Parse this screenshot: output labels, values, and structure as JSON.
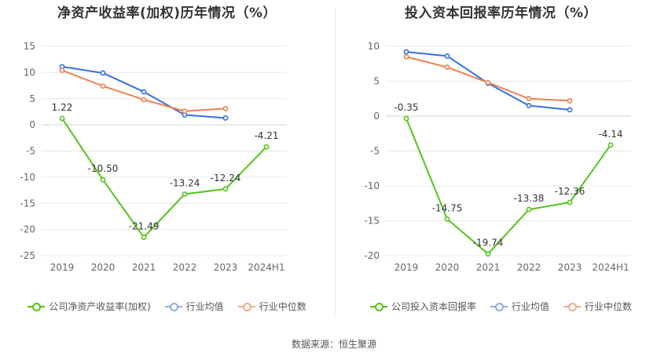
{
  "charts": [
    {
      "id": "left",
      "title": "净资产收益率(加权)历年情况（%）",
      "legend": [
        {
          "label": "公司净资产收益率(加权)",
          "color": "#52c41a"
        },
        {
          "label": "行业均值",
          "color": "#8fabf0"
        },
        {
          "label": "行业中位数",
          "color": "#f5a98b"
        }
      ]
    },
    {
      "id": "right",
      "title": "投入资本回报率历年情况（%）",
      "legend": [
        {
          "label": "公司投入资本回报率",
          "color": "#52c41a"
        },
        {
          "label": "行业均值",
          "color": "#8fabf0"
        },
        {
          "label": "行业中位数",
          "color": "#f5a98b"
        }
      ]
    }
  ],
  "source": "数据来源：恒生聚源",
  "chart_data": [
    {
      "type": "line",
      "title": "净资产收益率(加权)历年情况（%）",
      "categories": [
        "2019",
        "2020",
        "2021",
        "2022",
        "2023",
        "2024H1"
      ],
      "ylim": [
        -25,
        15
      ],
      "yticks": [
        15,
        10,
        5,
        0,
        -5,
        -10,
        -15,
        -20,
        -25
      ],
      "series": [
        {
          "name": "公司净资产收益率(加权)",
          "color": "#52c41a",
          "values": [
            1.22,
            -10.5,
            -21.49,
            -13.24,
            -12.24,
            -4.21
          ],
          "labels": [
            "1.22",
            "-10.50",
            "-21.49",
            "-13.24",
            "-12.24",
            "-4.21"
          ]
        },
        {
          "name": "行业均值",
          "color": "#3570e0",
          "values": [
            11.1,
            9.9,
            6.3,
            1.9,
            1.3,
            null
          ]
        },
        {
          "name": "行业中位数",
          "color": "#f07f4f",
          "values": [
            10.4,
            7.4,
            4.8,
            2.6,
            3.1,
            null
          ]
        }
      ]
    },
    {
      "type": "line",
      "title": "投入资本回报率历年情况（%）",
      "categories": [
        "2019",
        "2020",
        "2021",
        "2022",
        "2023",
        "2024H1"
      ],
      "ylim": [
        -20,
        10
      ],
      "yticks": [
        10,
        5,
        0,
        -5,
        -10,
        -15,
        -20
      ],
      "series": [
        {
          "name": "公司投入资本回报率",
          "color": "#52c41a",
          "values": [
            -0.35,
            -14.75,
            -19.74,
            -13.38,
            -12.36,
            -4.14
          ],
          "labels": [
            "-0.35",
            "-14.75",
            "-19.74",
            "-13.38",
            "-12.36",
            "-4.14"
          ]
        },
        {
          "name": "行业均值",
          "color": "#3570e0",
          "values": [
            9.2,
            8.6,
            4.7,
            1.5,
            0.9,
            null
          ]
        },
        {
          "name": "行业中位数",
          "color": "#f07f4f",
          "values": [
            8.5,
            7.0,
            4.8,
            2.5,
            2.2,
            null
          ]
        }
      ]
    }
  ]
}
